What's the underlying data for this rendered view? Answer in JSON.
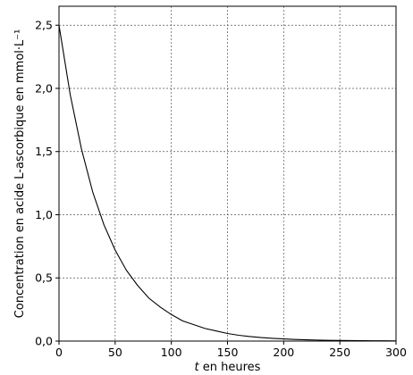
{
  "chart_data": {
    "type": "line",
    "title": "",
    "xlabel_var": "t",
    "xlabel_rest": " en heures",
    "ylabel": "Concentration en acide L-ascorbique en mmol·L⁻¹",
    "xlim": [
      0,
      300
    ],
    "ylim": [
      0,
      2.65
    ],
    "xticks": [
      0,
      50,
      100,
      150,
      200,
      250,
      300
    ],
    "xtick_labels": [
      "0",
      "50",
      "100",
      "150",
      "200",
      "250",
      "300"
    ],
    "yticks": [
      0,
      0.5,
      1.0,
      1.5,
      2.0,
      2.5
    ],
    "ytick_labels": [
      "0,0",
      "0,5",
      "1,0",
      "1,5",
      "2,0",
      "2,5"
    ],
    "grid": true,
    "grid_style": "dotted",
    "line_color": "#000000",
    "series": [
      {
        "x": [
          0,
          10,
          20,
          30,
          40,
          50,
          60,
          70,
          80,
          90,
          100,
          110,
          120,
          130,
          140,
          150,
          160,
          170,
          180,
          190,
          200,
          210,
          220,
          230,
          240,
          250,
          260,
          270,
          280,
          290,
          300
        ],
        "values": [
          2.5,
          1.95,
          1.52,
          1.18,
          0.92,
          0.72,
          0.56,
          0.44,
          0.34,
          0.27,
          0.21,
          0.16,
          0.13,
          0.1,
          0.08,
          0.06,
          0.046,
          0.036,
          0.028,
          0.022,
          0.017,
          0.013,
          0.01,
          0.008,
          0.006,
          0.005,
          0.004,
          0.003,
          0.002,
          0.002,
          0.001
        ]
      }
    ]
  }
}
